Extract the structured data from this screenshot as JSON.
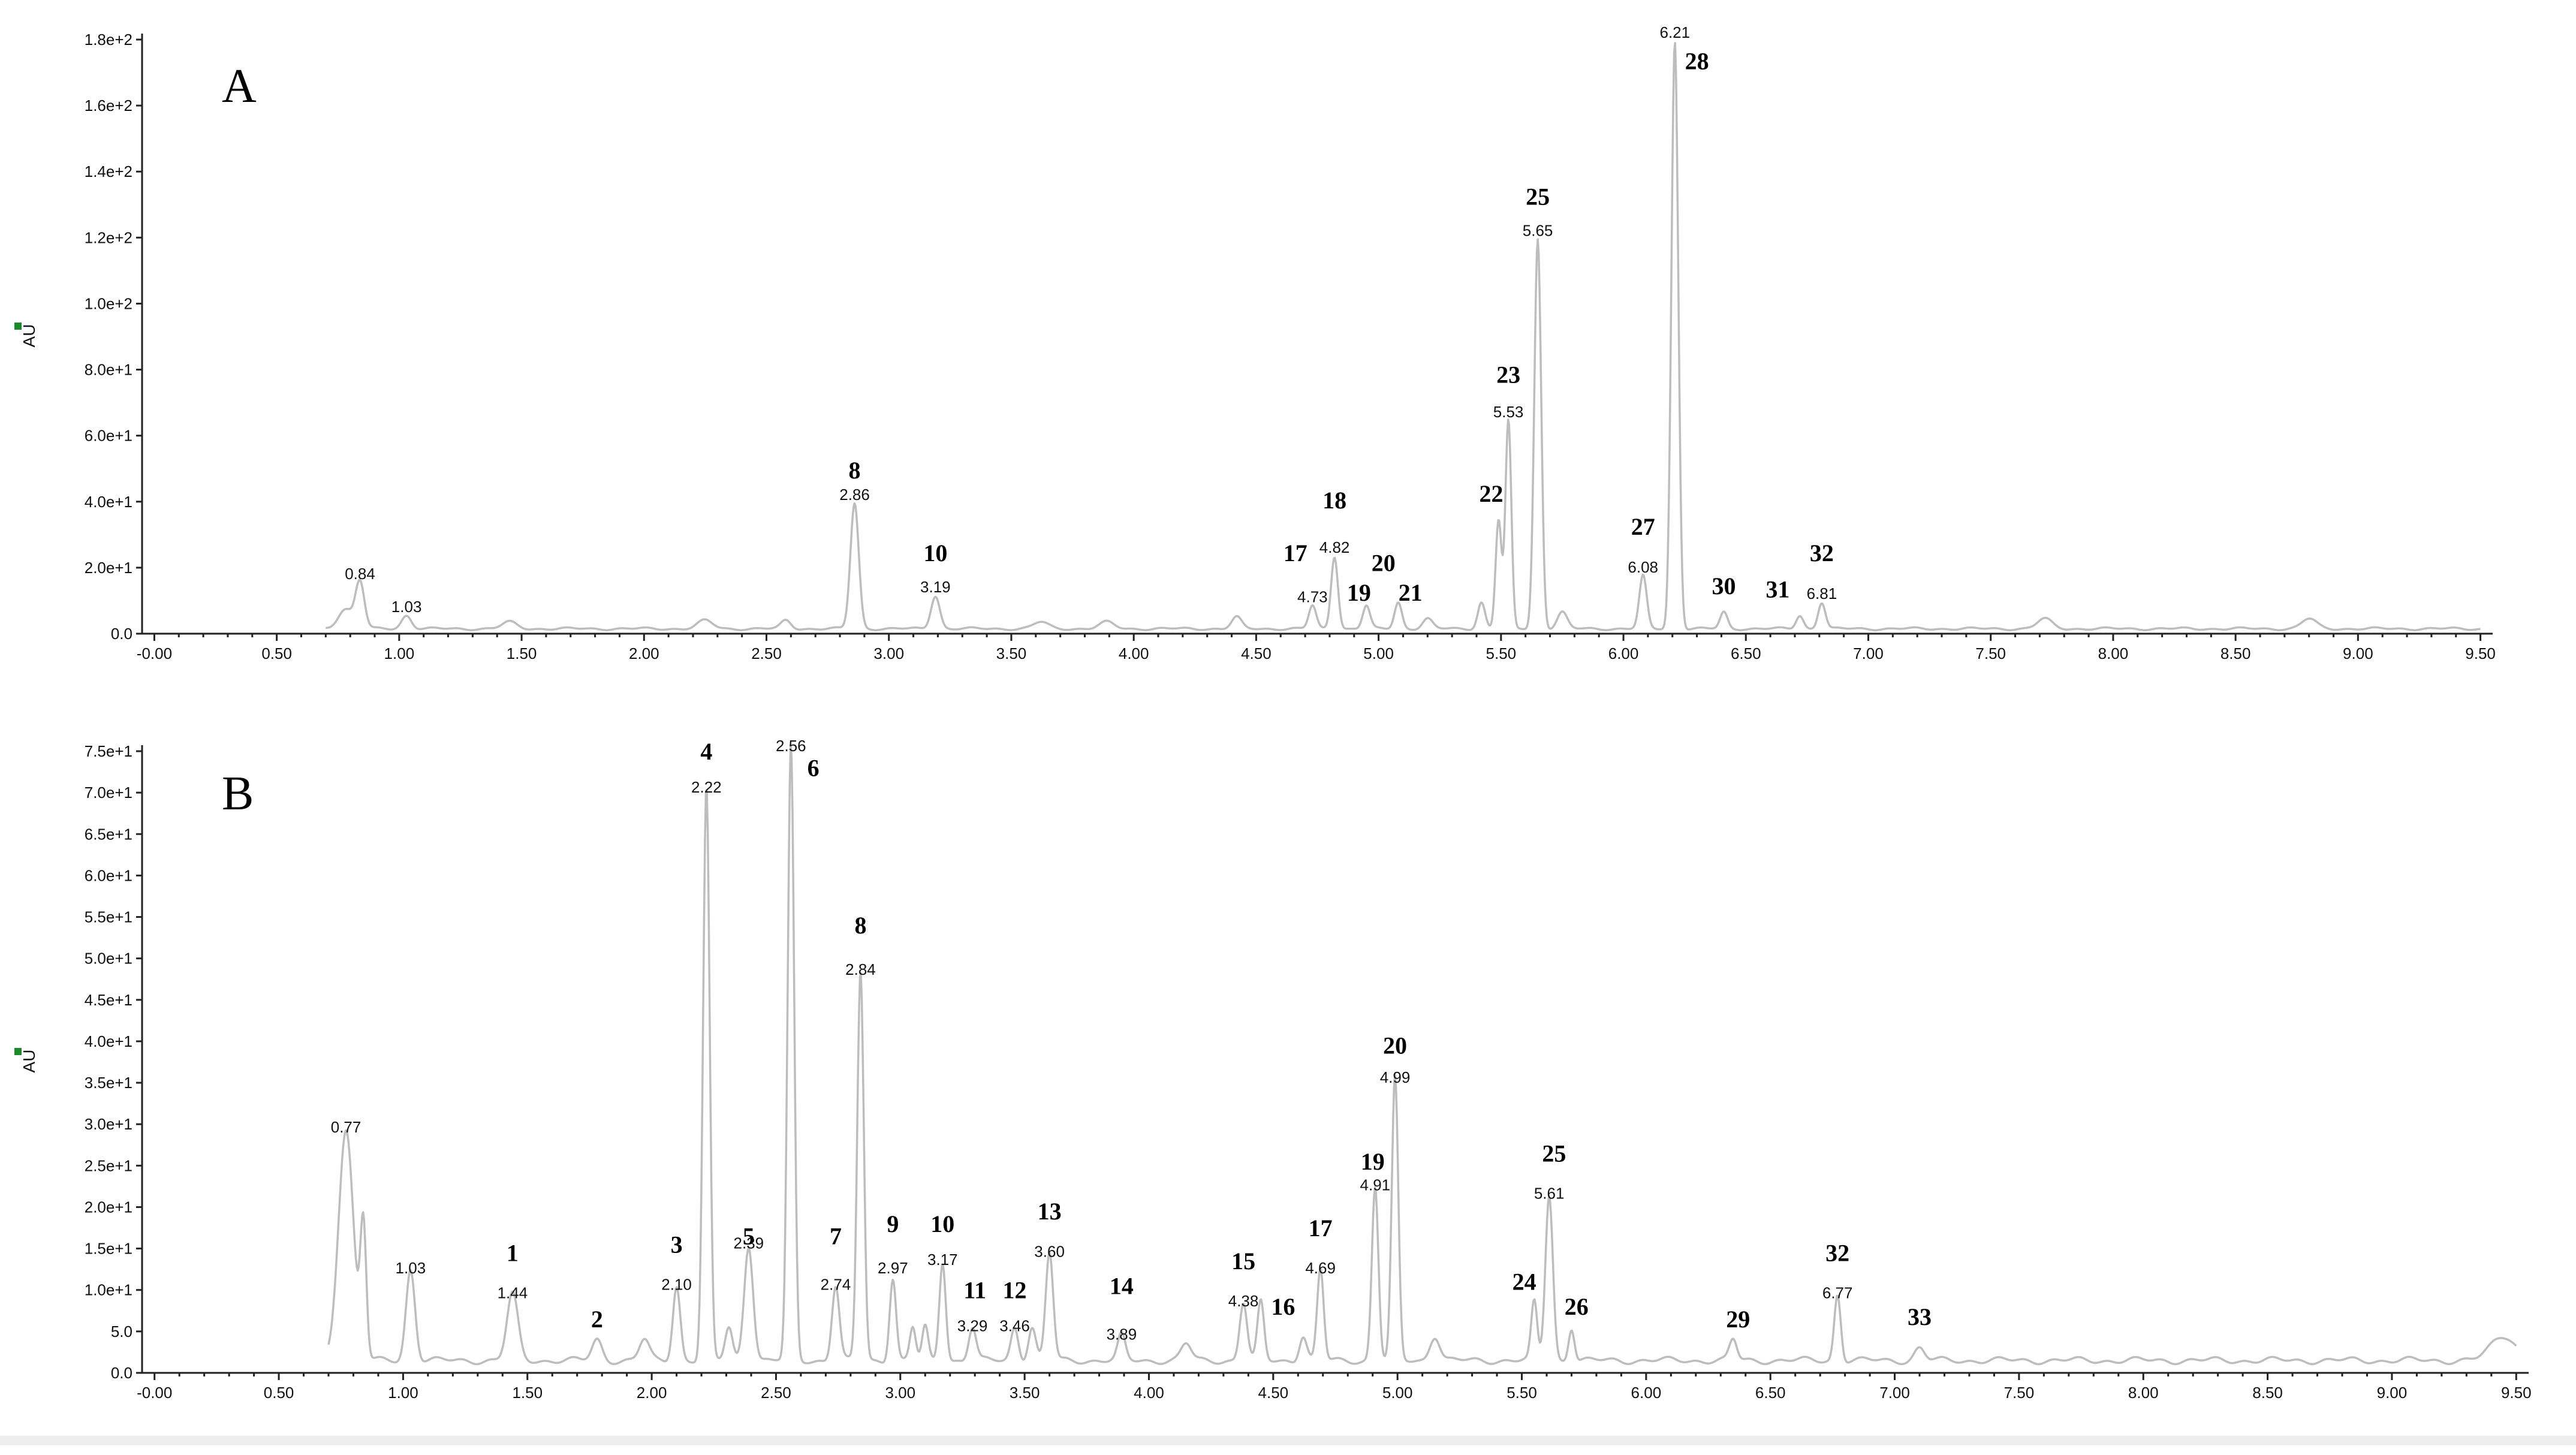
{
  "chart_data": [
    {
      "type": "line",
      "panel_label": "A",
      "ylabel": "AU",
      "xlim": [
        -0.05,
        9.55
      ],
      "ylim": [
        0,
        180
      ],
      "x_ticks": [
        "-0.00",
        "0.50",
        "1.00",
        "1.50",
        "2.00",
        "2.50",
        "3.00",
        "3.50",
        "4.00",
        "4.50",
        "5.00",
        "5.50",
        "6.00",
        "6.50",
        "7.00",
        "7.50",
        "8.00",
        "8.50",
        "9.00",
        "9.50"
      ],
      "y_ticks": [
        {
          "value": 0,
          "label": "0.0"
        },
        {
          "value": 20,
          "label": "2.0e+1"
        },
        {
          "value": 40,
          "label": "4.0e+1"
        },
        {
          "value": 60,
          "label": "6.0e+1"
        },
        {
          "value": 80,
          "label": "8.0e+1"
        },
        {
          "value": 100,
          "label": "1.0e+2"
        },
        {
          "value": 120,
          "label": "1.2e+2"
        },
        {
          "value": 140,
          "label": "1.4e+2"
        },
        {
          "value": 160,
          "label": "1.6e+2"
        },
        {
          "value": 180,
          "label": "1.8e+2"
        }
      ],
      "baseline": 1.5,
      "peaks": [
        {
          "rt": 0.78,
          "height": 6,
          "width": 0.03
        },
        {
          "rt": 0.84,
          "height": 14,
          "width": 0.018
        },
        {
          "rt": 1.03,
          "height": 4,
          "width": 0.02
        },
        {
          "rt": 1.45,
          "height": 2,
          "width": 0.03
        },
        {
          "rt": 2.25,
          "height": 2.5,
          "width": 0.03
        },
        {
          "rt": 2.58,
          "height": 2.5,
          "width": 0.02
        },
        {
          "rt": 2.86,
          "height": 38,
          "width": 0.017
        },
        {
          "rt": 3.19,
          "height": 10,
          "width": 0.018
        },
        {
          "rt": 3.62,
          "height": 2,
          "width": 0.03
        },
        {
          "rt": 3.89,
          "height": 2,
          "width": 0.03
        },
        {
          "rt": 4.42,
          "height": 3.5,
          "width": 0.02
        },
        {
          "rt": 4.73,
          "height": 7,
          "width": 0.015
        },
        {
          "rt": 4.82,
          "height": 22,
          "width": 0.014
        },
        {
          "rt": 4.95,
          "height": 7,
          "width": 0.015
        },
        {
          "rt": 5.08,
          "height": 8,
          "width": 0.015
        },
        {
          "rt": 5.2,
          "height": 3,
          "width": 0.02
        },
        {
          "rt": 5.42,
          "height": 8,
          "width": 0.015
        },
        {
          "rt": 5.49,
          "height": 33,
          "width": 0.012
        },
        {
          "rt": 5.53,
          "height": 63,
          "width": 0.012
        },
        {
          "rt": 5.65,
          "height": 118,
          "width": 0.014
        },
        {
          "rt": 5.75,
          "height": 5,
          "width": 0.02
        },
        {
          "rt": 6.08,
          "height": 16,
          "width": 0.015
        },
        {
          "rt": 6.21,
          "height": 178,
          "width": 0.014
        },
        {
          "rt": 6.41,
          "height": 5,
          "width": 0.015
        },
        {
          "rt": 6.72,
          "height": 4,
          "width": 0.015
        },
        {
          "rt": 6.81,
          "height": 8,
          "width": 0.015
        },
        {
          "rt": 7.72,
          "height": 3,
          "width": 0.03
        },
        {
          "rt": 8.8,
          "height": 3,
          "width": 0.03
        }
      ],
      "retention_labels": [
        {
          "text": "0.84",
          "x": 0.84,
          "y": 14
        },
        {
          "text": "1.03",
          "x": 1.03,
          "y": 4
        },
        {
          "text": "2.86",
          "x": 2.86,
          "y": 38
        },
        {
          "text": "3.19",
          "x": 3.19,
          "y": 10
        },
        {
          "text": "4.73",
          "x": 4.73,
          "y": 7
        },
        {
          "text": "4.82",
          "x": 4.82,
          "y": 22
        },
        {
          "text": "5.53",
          "x": 5.53,
          "y": 63
        },
        {
          "text": "5.65",
          "x": 5.65,
          "y": 118
        },
        {
          "text": "6.08",
          "x": 6.08,
          "y": 16
        },
        {
          "text": "6.21",
          "x": 6.21,
          "y": 178
        },
        {
          "text": "6.81",
          "x": 6.81,
          "y": 8
        }
      ],
      "peak_numbers": [
        {
          "text": "8",
          "x": 2.86,
          "y": 47
        },
        {
          "text": "10",
          "x": 3.19,
          "y": 22
        },
        {
          "text": "17",
          "x": 4.66,
          "y": 22
        },
        {
          "text": "18",
          "x": 4.82,
          "y": 38
        },
        {
          "text": "19",
          "x": 4.92,
          "y": 10
        },
        {
          "text": "20",
          "x": 5.02,
          "y": 19
        },
        {
          "text": "21",
          "x": 5.13,
          "y": 10
        },
        {
          "text": "22",
          "x": 5.46,
          "y": 40
        },
        {
          "text": "23",
          "x": 5.53,
          "y": 76
        },
        {
          "text": "25",
          "x": 5.65,
          "y": 130
        },
        {
          "text": "27",
          "x": 6.08,
          "y": 30
        },
        {
          "text": "28",
          "x": 6.3,
          "y": 171
        },
        {
          "text": "30",
          "x": 6.41,
          "y": 12
        },
        {
          "text": "31",
          "x": 6.63,
          "y": 11
        },
        {
          "text": "32",
          "x": 6.81,
          "y": 22
        }
      ]
    },
    {
      "type": "line",
      "panel_label": "B",
      "ylabel": "AU",
      "xlim": [
        -0.05,
        9.55
      ],
      "ylim": [
        0,
        75
      ],
      "x_ticks": [
        "-0.00",
        "0.50",
        "1.00",
        "1.50",
        "2.00",
        "2.50",
        "3.00",
        "3.50",
        "4.00",
        "4.50",
        "5.00",
        "5.50",
        "6.00",
        "6.50",
        "7.00",
        "7.50",
        "8.00",
        "8.50",
        "9.00",
        "9.50"
      ],
      "y_ticks": [
        {
          "value": 0,
          "label": "0.0"
        },
        {
          "value": 5,
          "label": "5.0"
        },
        {
          "value": 10,
          "label": "1.0e+1"
        },
        {
          "value": 15,
          "label": "1.5e+1"
        },
        {
          "value": 20,
          "label": "2.0e+1"
        },
        {
          "value": 25,
          "label": "2.5e+1"
        },
        {
          "value": 30,
          "label": "3.0e+1"
        },
        {
          "value": 35,
          "label": "3.5e+1"
        },
        {
          "value": 40,
          "label": "4.0e+1"
        },
        {
          "value": 45,
          "label": "4.5e+1"
        },
        {
          "value": 50,
          "label": "5.0e+1"
        },
        {
          "value": 55,
          "label": "5.5e+1"
        },
        {
          "value": 60,
          "label": "6.0e+1"
        },
        {
          "value": 65,
          "label": "6.5e+1"
        },
        {
          "value": 70,
          "label": "7.0e+1"
        },
        {
          "value": 75,
          "label": "7.5e+1"
        }
      ],
      "baseline": 1.5,
      "peaks": [
        {
          "rt": 0.77,
          "height": 28,
          "width": 0.03
        },
        {
          "rt": 0.84,
          "height": 16,
          "width": 0.012
        },
        {
          "rt": 1.03,
          "height": 11,
          "width": 0.018
        },
        {
          "rt": 1.44,
          "height": 8,
          "width": 0.022
        },
        {
          "rt": 1.78,
          "height": 2.5,
          "width": 0.02
        },
        {
          "rt": 1.97,
          "height": 2.5,
          "width": 0.02
        },
        {
          "rt": 2.1,
          "height": 9,
          "width": 0.015
        },
        {
          "rt": 2.22,
          "height": 69,
          "width": 0.013
        },
        {
          "rt": 2.31,
          "height": 4,
          "width": 0.015
        },
        {
          "rt": 2.39,
          "height": 14,
          "width": 0.018
        },
        {
          "rt": 2.56,
          "height": 74,
          "width": 0.013
        },
        {
          "rt": 2.74,
          "height": 9,
          "width": 0.015
        },
        {
          "rt": 2.84,
          "height": 47,
          "width": 0.013
        },
        {
          "rt": 2.97,
          "height": 10,
          "width": 0.013
        },
        {
          "rt": 3.05,
          "height": 4,
          "width": 0.012
        },
        {
          "rt": 3.1,
          "height": 4,
          "width": 0.012
        },
        {
          "rt": 3.17,
          "height": 12,
          "width": 0.013
        },
        {
          "rt": 3.29,
          "height": 4,
          "width": 0.015
        },
        {
          "rt": 3.46,
          "height": 4,
          "width": 0.015
        },
        {
          "rt": 3.53,
          "height": 4,
          "width": 0.015
        },
        {
          "rt": 3.6,
          "height": 13,
          "width": 0.015
        },
        {
          "rt": 3.89,
          "height": 3,
          "width": 0.015
        },
        {
          "rt": 4.15,
          "height": 2,
          "width": 0.02
        },
        {
          "rt": 4.38,
          "height": 7,
          "width": 0.015
        },
        {
          "rt": 4.45,
          "height": 7,
          "width": 0.013
        },
        {
          "rt": 4.62,
          "height": 3,
          "width": 0.015
        },
        {
          "rt": 4.69,
          "height": 11,
          "width": 0.013
        },
        {
          "rt": 4.91,
          "height": 21,
          "width": 0.013
        },
        {
          "rt": 4.99,
          "height": 34,
          "width": 0.013
        },
        {
          "rt": 5.15,
          "height": 3,
          "width": 0.02
        },
        {
          "rt": 5.55,
          "height": 7,
          "width": 0.012
        },
        {
          "rt": 5.61,
          "height": 20,
          "width": 0.015
        },
        {
          "rt": 5.7,
          "height": 4,
          "width": 0.012
        },
        {
          "rt": 6.35,
          "height": 2.5,
          "width": 0.015
        },
        {
          "rt": 6.77,
          "height": 8,
          "width": 0.013
        },
        {
          "rt": 7.1,
          "height": 1.5,
          "width": 0.02
        },
        {
          "rt": 9.45,
          "height": 3,
          "width": 0.05
        }
      ],
      "retention_labels": [
        {
          "text": "0.77",
          "x": 0.77,
          "y": 28
        },
        {
          "text": "1.03",
          "x": 1.03,
          "y": 11
        },
        {
          "text": "1.44",
          "x": 1.44,
          "y": 8
        },
        {
          "text": "2.10",
          "x": 2.1,
          "y": 9
        },
        {
          "text": "2.22",
          "x": 2.22,
          "y": 69
        },
        {
          "text": "2.39",
          "x": 2.39,
          "y": 14
        },
        {
          "text": "2.56",
          "x": 2.56,
          "y": 74
        },
        {
          "text": "2.74",
          "x": 2.74,
          "y": 9
        },
        {
          "text": "2.84",
          "x": 2.84,
          "y": 47
        },
        {
          "text": "2.97",
          "x": 2.97,
          "y": 11
        },
        {
          "text": "3.17",
          "x": 3.17,
          "y": 12
        },
        {
          "text": "3.29",
          "x": 3.29,
          "y": 4
        },
        {
          "text": "3.46",
          "x": 3.46,
          "y": 4
        },
        {
          "text": "3.60",
          "x": 3.6,
          "y": 13
        },
        {
          "text": "3.89",
          "x": 3.89,
          "y": 3
        },
        {
          "text": "4.38",
          "x": 4.38,
          "y": 7
        },
        {
          "text": "4.69",
          "x": 4.69,
          "y": 11
        },
        {
          "text": "4.91",
          "x": 4.91,
          "y": 21
        },
        {
          "text": "4.99",
          "x": 4.99,
          "y": 34
        },
        {
          "text": "5.61",
          "x": 5.61,
          "y": 20
        },
        {
          "text": "6.77",
          "x": 6.77,
          "y": 8
        }
      ],
      "peak_numbers": [
        {
          "text": "1",
          "x": 1.44,
          "y": 13.5
        },
        {
          "text": "2",
          "x": 1.78,
          "y": 5.5
        },
        {
          "text": "3",
          "x": 2.1,
          "y": 14.5
        },
        {
          "text": "4",
          "x": 2.22,
          "y": 74
        },
        {
          "text": "5",
          "x": 2.39,
          "y": 15.5
        },
        {
          "text": "6",
          "x": 2.65,
          "y": 72
        },
        {
          "text": "7",
          "x": 2.74,
          "y": 15.5
        },
        {
          "text": "8",
          "x": 2.84,
          "y": 53
        },
        {
          "text": "9",
          "x": 2.97,
          "y": 17
        },
        {
          "text": "10",
          "x": 3.17,
          "y": 17
        },
        {
          "text": "11",
          "x": 3.3,
          "y": 9
        },
        {
          "text": "12",
          "x": 3.46,
          "y": 9
        },
        {
          "text": "13",
          "x": 3.6,
          "y": 18.5
        },
        {
          "text": "14",
          "x": 3.89,
          "y": 9.5
        },
        {
          "text": "15",
          "x": 4.38,
          "y": 12.5
        },
        {
          "text": "16",
          "x": 4.54,
          "y": 7
        },
        {
          "text": "17",
          "x": 4.69,
          "y": 16.5
        },
        {
          "text": "19",
          "x": 4.9,
          "y": 24.5
        },
        {
          "text": "20",
          "x": 4.99,
          "y": 38.5
        },
        {
          "text": "24",
          "x": 5.51,
          "y": 10
        },
        {
          "text": "25",
          "x": 5.63,
          "y": 25.5
        },
        {
          "text": "26",
          "x": 5.72,
          "y": 7
        },
        {
          "text": "29",
          "x": 6.37,
          "y": 5.5
        },
        {
          "text": "32",
          "x": 6.77,
          "y": 13.5
        },
        {
          "text": "33",
          "x": 7.1,
          "y": 5.8
        }
      ]
    }
  ],
  "colors": {
    "trace": "#bdbdbd",
    "axis": "#222222",
    "unit_marker": "#1a8a2a",
    "footer_bar": "#eeeeee"
  }
}
